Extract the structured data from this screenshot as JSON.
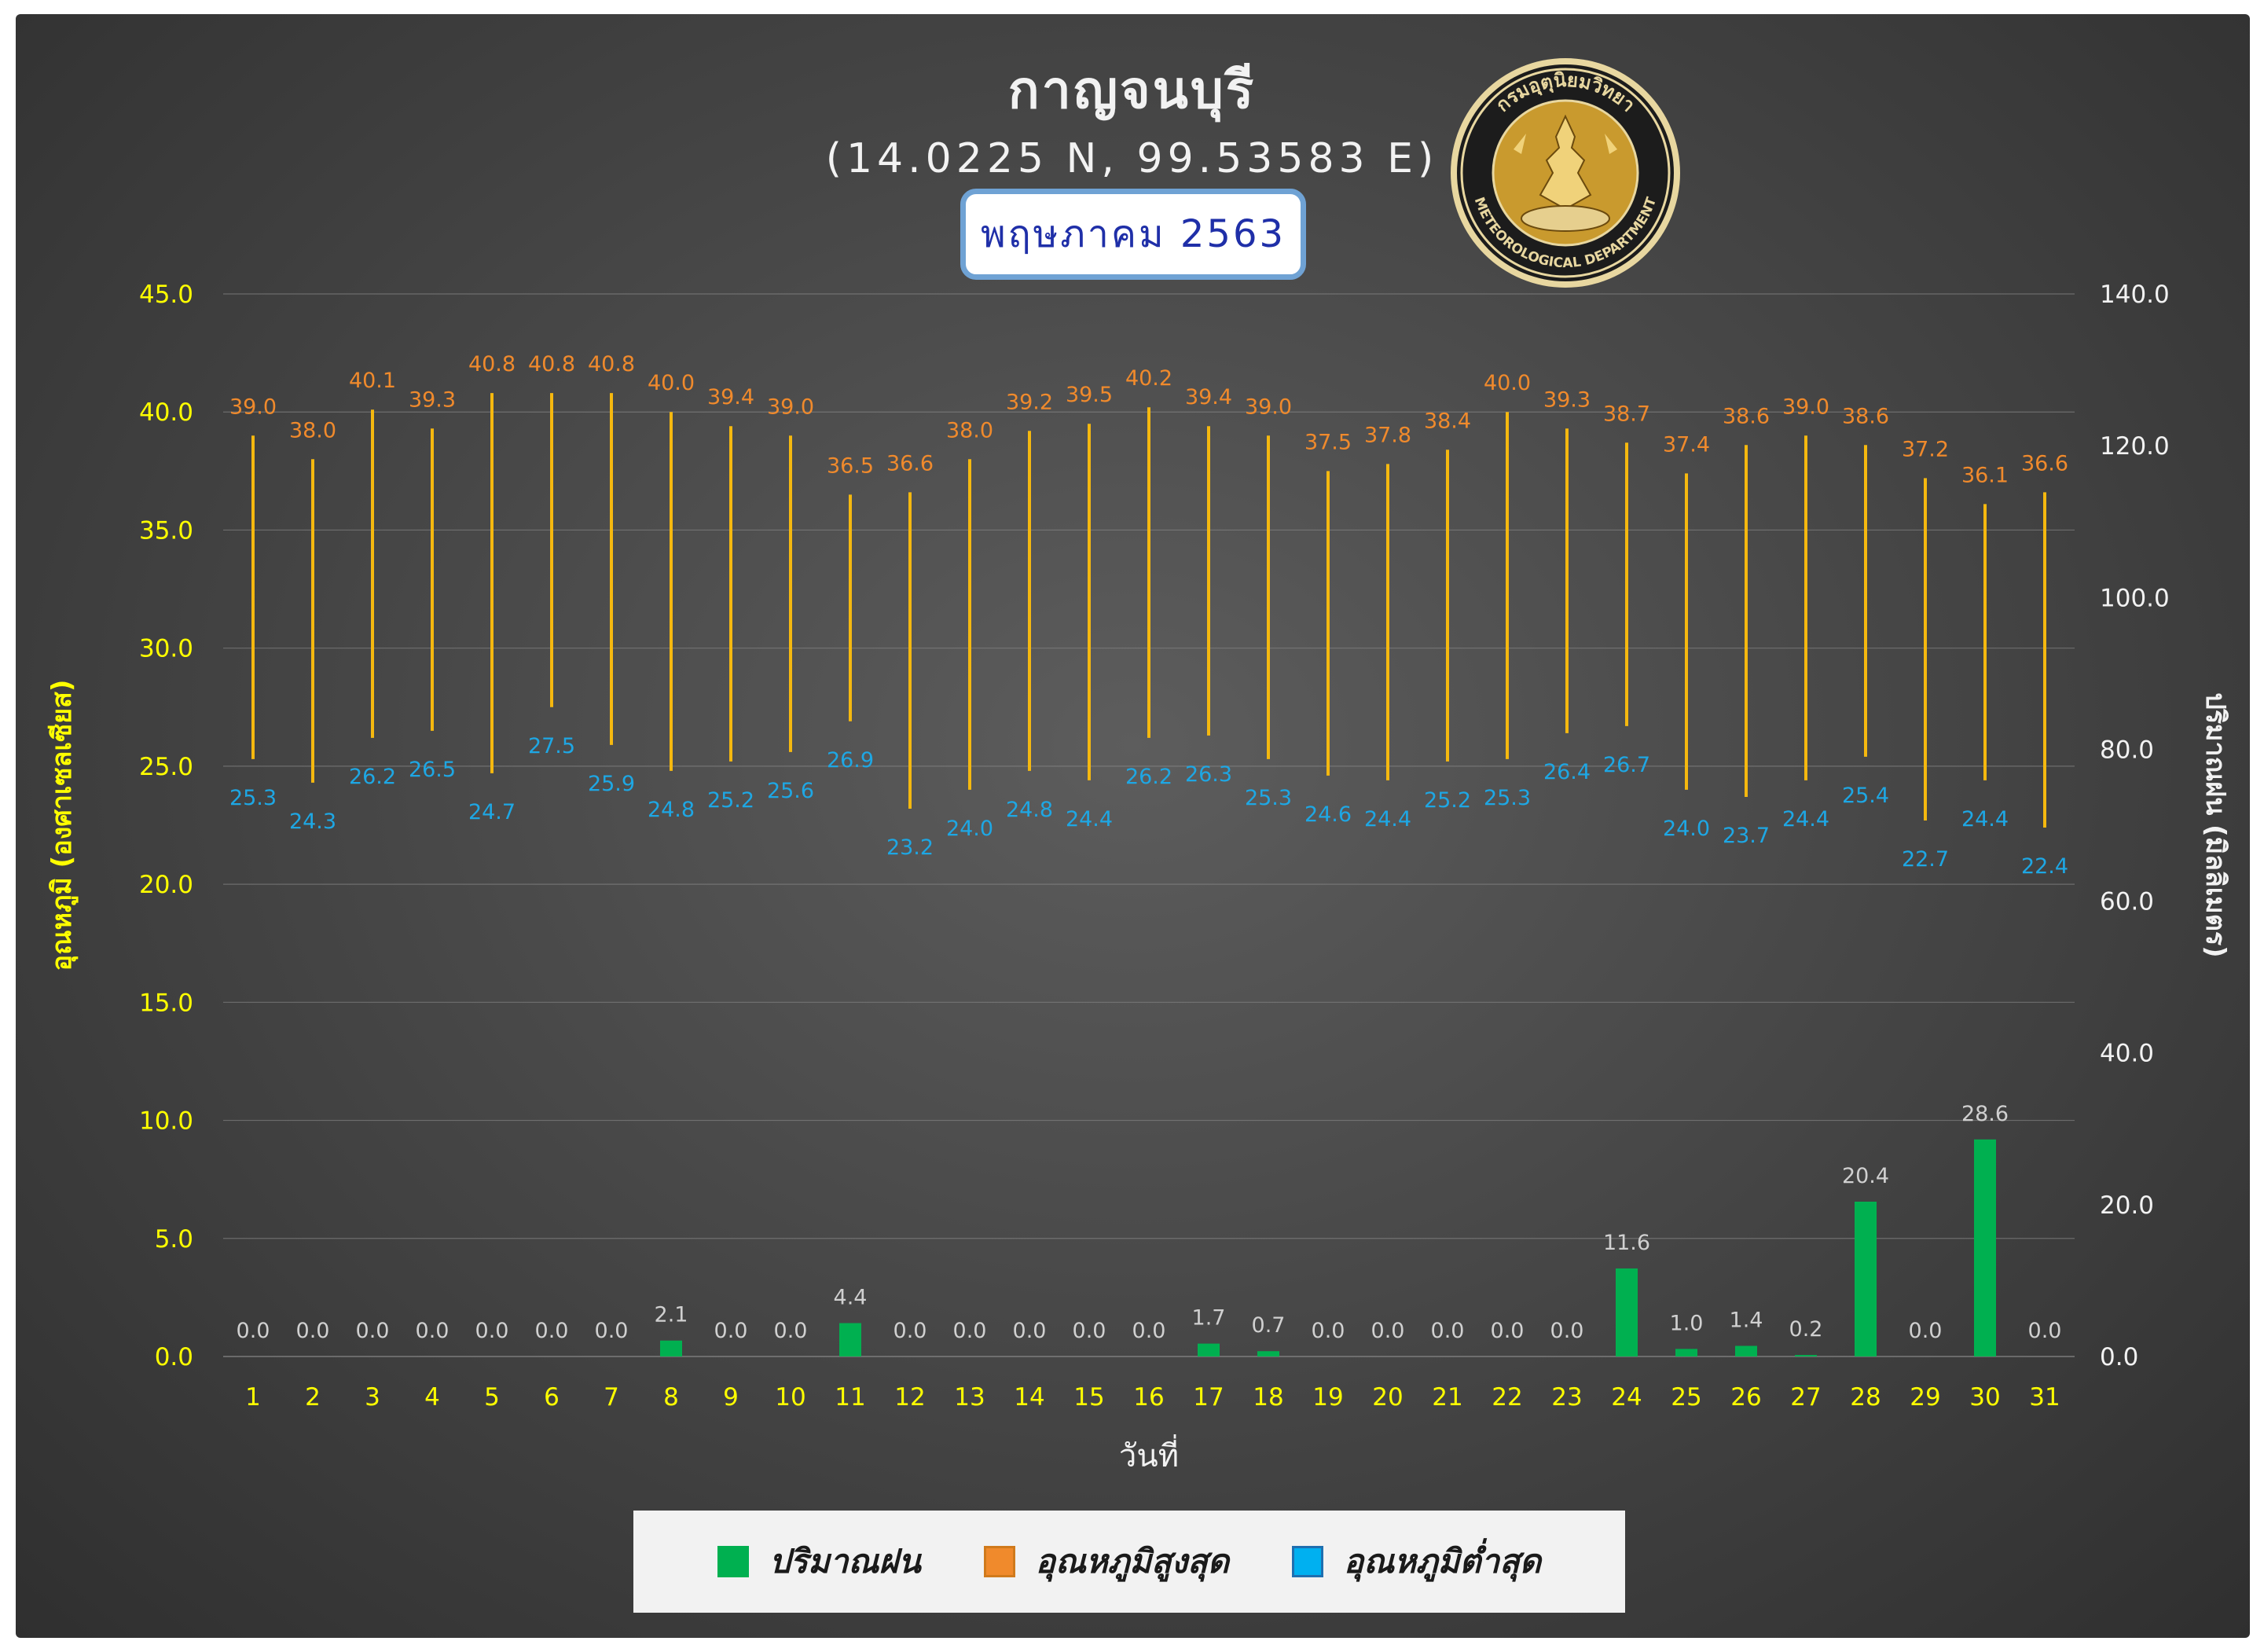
{
  "title": "กาญจนบุรี",
  "coordinates": "(14.0225 N, 99.53583 E)",
  "month_label": "พฤษภาคม 2563",
  "logo": {
    "top_text": "กรมอุตุนิยมวิทยา",
    "bottom_text": "METEOROLOGICAL DEPARTMENT"
  },
  "colors": {
    "temp_range_bar": "#f5b80f",
    "max_label": "#f08a2c",
    "min_label": "#1ea7e4",
    "rain_bar": "#00b050",
    "rain_label": "#d0d0d0",
    "axis_label": "#ffff00",
    "right_axis_label": "#f2f2f2",
    "x_tick": "#ffff00"
  },
  "legend": [
    {
      "label": "ปริมาณฝน",
      "color": "#00b050",
      "border": "#00b050"
    },
    {
      "label": "อุณหภูมิสูงสุด",
      "color": "#f08a2c",
      "border": "#d07a1c"
    },
    {
      "label": "อุณหภูมิต่ำสุด",
      "color": "#00b0f0",
      "border": "#1f6fb0"
    }
  ],
  "chart_data": {
    "type": "bar",
    "xlabel": "วันที่",
    "ylabel_left": "อุณหภูมิ (องศาเซลเซียส)",
    "ylabel_right": "ปริมาณฝน (มิลลิเมตร)",
    "ylim_left": [
      0,
      45
    ],
    "ylim_right": [
      0,
      140
    ],
    "left_ticks": [
      "0.0",
      "5.0",
      "10.0",
      "15.0",
      "20.0",
      "25.0",
      "30.0",
      "35.0",
      "40.0",
      "45.0"
    ],
    "right_ticks": [
      "0.0",
      "20.0",
      "40.0",
      "60.0",
      "80.0",
      "100.0",
      "120.0",
      "140.0"
    ],
    "categories": [
      "1",
      "2",
      "3",
      "4",
      "5",
      "6",
      "7",
      "8",
      "9",
      "10",
      "11",
      "12",
      "13",
      "14",
      "15",
      "16",
      "17",
      "18",
      "19",
      "20",
      "21",
      "22",
      "23",
      "24",
      "25",
      "26",
      "27",
      "28",
      "29",
      "30",
      "31"
    ],
    "series": [
      {
        "name": "อุณหภูมิสูงสุด",
        "axis": "left",
        "values": [
          39.0,
          38.0,
          40.1,
          39.3,
          40.8,
          40.8,
          40.8,
          40.0,
          39.4,
          39.0,
          36.5,
          36.6,
          38.0,
          39.2,
          39.5,
          40.2,
          39.4,
          39.0,
          37.5,
          37.8,
          38.4,
          40.0,
          39.3,
          38.7,
          37.4,
          38.6,
          39.0,
          38.6,
          37.2,
          36.1,
          36.6
        ],
        "labels": [
          "39.0",
          "38.0",
          "40.1",
          "39.3",
          "40.8",
          "40.8",
          "40.8",
          "40.0",
          "39.4",
          "39.0",
          "36.5",
          "36.6",
          "38.0",
          "39.2",
          "39.5",
          "40.2",
          "39.4",
          "39.0",
          "37.5",
          "37.8",
          "38.4",
          "40.0",
          "39.3",
          "38.7",
          "37.4",
          "38.6",
          "39.0",
          "38.6",
          "37.2",
          "36.1",
          "36.6"
        ]
      },
      {
        "name": "อุณหภูมิต่ำสุด",
        "axis": "left",
        "values": [
          25.3,
          24.3,
          26.2,
          26.5,
          24.7,
          27.5,
          25.9,
          24.8,
          25.2,
          25.6,
          26.9,
          23.2,
          24.0,
          24.8,
          24.4,
          26.2,
          26.3,
          25.3,
          24.6,
          24.4,
          25.2,
          25.3,
          26.4,
          26.7,
          24.0,
          23.7,
          24.4,
          25.4,
          22.7,
          24.4,
          22.4
        ],
        "labels": [
          "25.3",
          "24.3",
          "26.2",
          "26.5",
          "24.7",
          "27.5",
          "25.9",
          "24.8",
          "25.2",
          "25.6",
          "26.9",
          "23.2",
          "24.0",
          "24.8",
          "24.4",
          "26.2",
          "26.3",
          "25.3",
          "24.6",
          "24.4",
          "25.2",
          "25.3",
          "26.4",
          "26.7",
          "24.0",
          "23.7",
          "24.4",
          "25.4",
          "22.7",
          "24.4",
          "22.4"
        ]
      },
      {
        "name": "ปริมาณฝน",
        "axis": "right",
        "values": [
          0.0,
          0.0,
          0.0,
          0.0,
          0.0,
          0.0,
          0.0,
          2.1,
          0.0,
          0.0,
          4.4,
          0.0,
          0.0,
          0.0,
          0.0,
          0.0,
          1.7,
          0.7,
          0.0,
          0.0,
          0.0,
          0.0,
          0.0,
          11.6,
          1.0,
          1.4,
          0.2,
          20.4,
          0.0,
          28.6,
          0.0
        ],
        "labels": [
          "0.0",
          "0.0",
          "0.0",
          "0.0",
          "0.0",
          "0.0",
          "0.0",
          "2.1",
          "0.0",
          "0.0",
          "4.4",
          "0.0",
          "0.0",
          "0.0",
          "0.0",
          "0.0",
          "1.7",
          "0.7",
          "0.0",
          "0.0",
          "0.0",
          "0.0",
          "0.0",
          "11.6",
          "1.0",
          "1.4",
          "0.2",
          "20.4",
          "0.0",
          "28.6",
          "0.0"
        ]
      }
    ],
    "grid": true,
    "legend_position": "bottom"
  }
}
